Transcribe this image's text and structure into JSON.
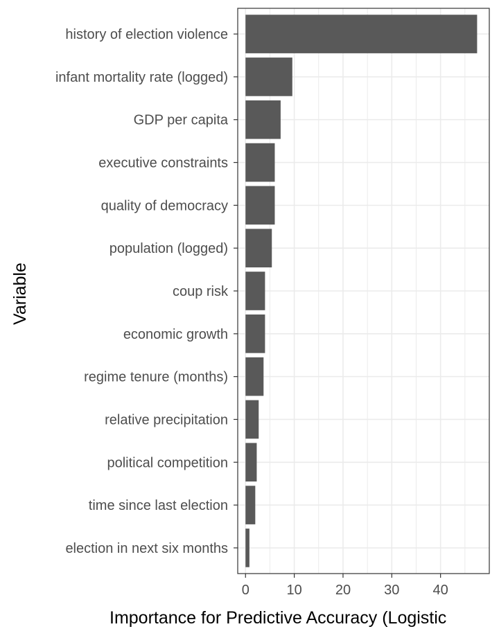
{
  "chart_data": {
    "type": "bar",
    "orientation": "horizontal",
    "categories": [
      "history of election violence",
      "infant mortality rate (logged)",
      "GDP per capita",
      "executive constraints",
      "quality of democracy",
      "population (logged)",
      "coup risk",
      "economic growth",
      "regime tenure (months)",
      "relative precipitation",
      "political competition",
      "time since last election",
      "election in next six months"
    ],
    "values": [
      47.5,
      9.6,
      7.2,
      6.0,
      6.0,
      5.4,
      4.0,
      4.0,
      3.7,
      2.7,
      2.3,
      2.0,
      0.8
    ],
    "xlabel": "Importance for Predictive Accuracy (Logistic",
    "ylabel": "Variable",
    "xlim": [
      -1.6,
      50
    ],
    "xticks": [
      "0",
      "10",
      "20",
      "30",
      "40"
    ],
    "xtick_values": [
      0,
      10,
      20,
      30,
      40
    ],
    "grid": true,
    "legend": "none",
    "colors": {
      "bar": "#595959",
      "grid": "#ebebeb",
      "panel_border": "#333333",
      "tick_label": "#4d4d4d"
    }
  }
}
